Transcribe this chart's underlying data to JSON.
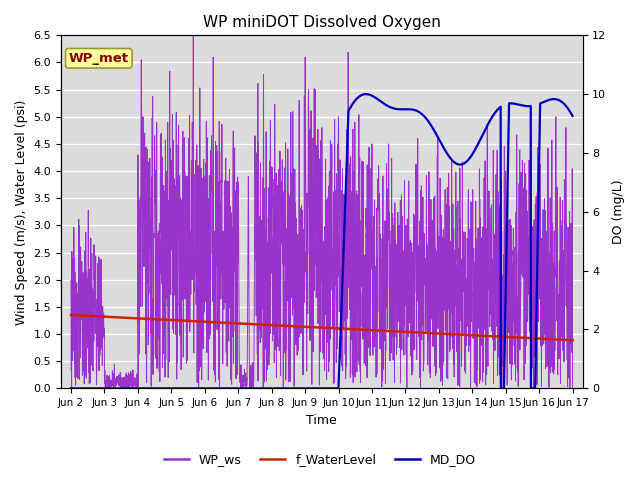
{
  "title": "WP miniDOT Dissolved Oxygen",
  "ylabel_left": "Wind Speed (m/s), Water Level (psi)",
  "ylabel_right": "DO (mg/L)",
  "xlabel": "Time",
  "ylim_left": [
    0.0,
    6.5
  ],
  "ylim_right": [
    0,
    12
  ],
  "yticks_left": [
    0.0,
    0.5,
    1.0,
    1.5,
    2.0,
    2.5,
    3.0,
    3.5,
    4.0,
    4.5,
    5.0,
    5.5,
    6.0,
    6.5
  ],
  "yticks_right": [
    0,
    2,
    4,
    6,
    8,
    10,
    12
  ],
  "xtick_labels": [
    "Jun 2",
    "Jun 3",
    "Jun 4",
    "Jun 5",
    "Jun 6",
    "Jun 7",
    "Jun 8",
    "Jun 9",
    "Jun 10",
    "Jun 11",
    "Jun 12",
    "Jun 13",
    "Jun 14",
    "Jun 15",
    "Jun 16",
    "Jun 17"
  ],
  "color_ws": "#9933cc",
  "color_wl": "#cc2200",
  "color_do": "#0000bb",
  "color_bg": "#dcdcdc",
  "annotation_text": "WP_met",
  "annotation_color": "#880000",
  "annotation_bg": "#ffff99",
  "legend_labels": [
    "WP_ws",
    "f_WaterLevel",
    "MD_DO"
  ]
}
